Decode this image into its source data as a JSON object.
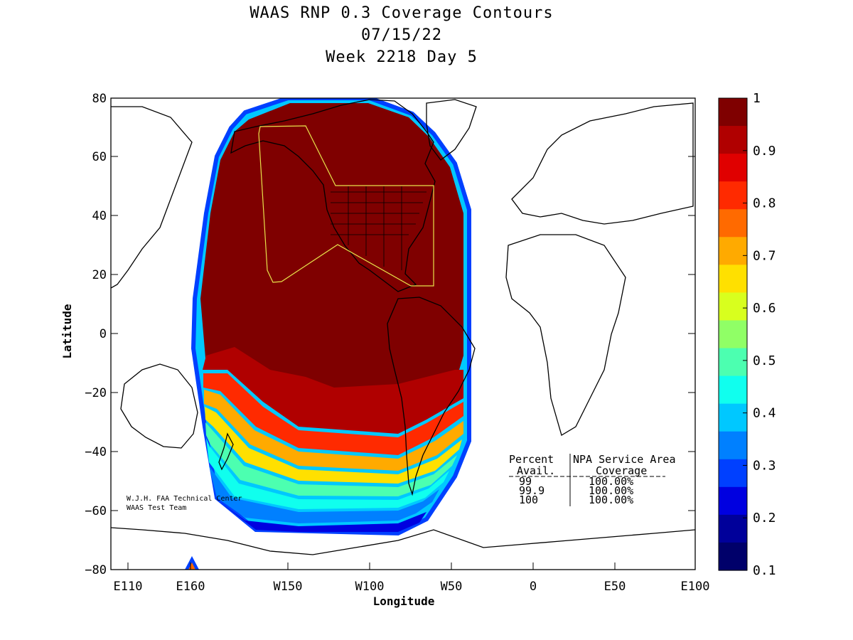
{
  "title": {
    "line1": "WAAS RNP 0.3 Coverage Contours",
    "line2": "07/15/22",
    "line3": "Week 2218 Day 5"
  },
  "axes": {
    "xlabel": "Longitude",
    "ylabel": "Latitude",
    "x_ticks": [
      "E110",
      "E160",
      "W150",
      "W100",
      "W50",
      "0",
      "E50",
      "E100"
    ],
    "y_ticks": [
      "80",
      "60",
      "40",
      "20",
      "0",
      "−20",
      "−40",
      "−60",
      "−80"
    ]
  },
  "colorbar": {
    "ticks": [
      "1",
      "0.9",
      "0.8",
      "0.7",
      "0.6",
      "0.5",
      "0.4",
      "0.3",
      "0.2",
      "0.1"
    ],
    "colors": [
      "#7f0000",
      "#b00000",
      "#e00000",
      "#ff2a00",
      "#ff6a00",
      "#ffaa00",
      "#ffe000",
      "#d8ff1e",
      "#90ff66",
      "#4cffb0",
      "#10ffee",
      "#00c8ff",
      "#0080ff",
      "#0040ff",
      "#0000e0",
      "#00009a",
      "#00006a"
    ]
  },
  "credit": {
    "line1": "W.J.H. FAA Technical Center",
    "line2": "WAAS Test Team"
  },
  "coverage_table": {
    "header_left": "Percent",
    "header_right": "NPA Service Area",
    "sub_left": "Avail.",
    "sub_right": "Coverage",
    "rows": [
      {
        "avail": "99",
        "coverage": "100.00%"
      },
      {
        "avail": "99.9",
        "coverage": "100.00%"
      },
      {
        "avail": "100",
        "coverage": "100.00%"
      }
    ]
  },
  "chart_data": {
    "type": "heatmap",
    "title": "WAAS RNP 0.3 Coverage Contours",
    "subtitle": "07/15/22 Week 2218 Day 5",
    "xlabel": "Longitude",
    "ylabel": "Latitude",
    "xlim": [
      -250,
      100
    ],
    "ylim": [
      -80,
      80
    ],
    "color_range": [
      0.1,
      1
    ],
    "colormap": "jet"
  }
}
